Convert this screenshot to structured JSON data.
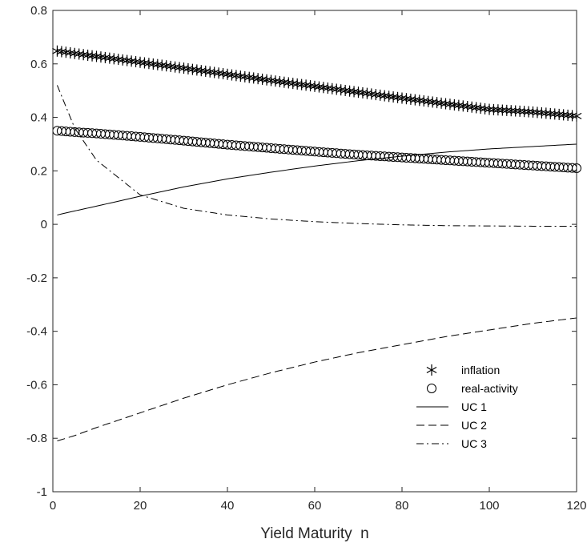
{
  "chart_data": {
    "type": "line",
    "title": "",
    "xlabel": "Yield Maturity  n",
    "ylabel": "",
    "xlim": [
      0,
      120
    ],
    "ylim": [
      -1,
      0.8
    ],
    "xticks": [
      0,
      20,
      40,
      60,
      80,
      100,
      120
    ],
    "yticks": [
      -1,
      -0.8,
      -0.6,
      -0.4,
      -0.2,
      0,
      0.2,
      0.4,
      0.6,
      0.8
    ],
    "xtick_labels": [
      "0",
      "20",
      "40",
      "60",
      "80",
      "100",
      "120"
    ],
    "ytick_labels": [
      "-1",
      "-0.8",
      "-0.6",
      "-0.4",
      "-0.2",
      "0",
      "0.2",
      "0.4",
      "0.6",
      "0.8"
    ],
    "grid": false,
    "legend_position": "bottom-right",
    "x": [
      1,
      5,
      10,
      20,
      30,
      40,
      50,
      60,
      70,
      80,
      90,
      100,
      110,
      120
    ],
    "series": [
      {
        "name": "inflation",
        "style": "asterisk-markers",
        "color": "#000000",
        "values": [
          0.648,
          0.639,
          0.628,
          0.606,
          0.584,
          0.561,
          0.538,
          0.516,
          0.494,
          0.472,
          0.451,
          0.43,
          0.42,
          0.405
        ]
      },
      {
        "name": "real-activity",
        "style": "circle-markers",
        "color": "#000000",
        "values": [
          0.35,
          0.345,
          0.34,
          0.327,
          0.313,
          0.298,
          0.285,
          0.272,
          0.26,
          0.25,
          0.24,
          0.23,
          0.22,
          0.21
        ]
      },
      {
        "name": "UC 1",
        "style": "solid",
        "color": "#000000",
        "values": [
          0.035,
          0.05,
          0.068,
          0.105,
          0.14,
          0.17,
          0.195,
          0.218,
          0.238,
          0.255,
          0.27,
          0.282,
          0.291,
          0.3
        ]
      },
      {
        "name": "UC 2",
        "style": "dashed",
        "color": "#000000",
        "values": [
          -0.81,
          -0.79,
          -0.76,
          -0.705,
          -0.65,
          -0.6,
          -0.555,
          -0.515,
          -0.48,
          -0.45,
          -0.42,
          -0.395,
          -0.37,
          -0.35
        ]
      },
      {
        "name": "UC 3",
        "style": "dashdot",
        "color": "#000000",
        "values": [
          0.52,
          0.36,
          0.24,
          0.11,
          0.06,
          0.035,
          0.02,
          0.01,
          0.003,
          -0.002,
          -0.005,
          -0.006,
          -0.007,
          -0.007
        ]
      }
    ]
  }
}
